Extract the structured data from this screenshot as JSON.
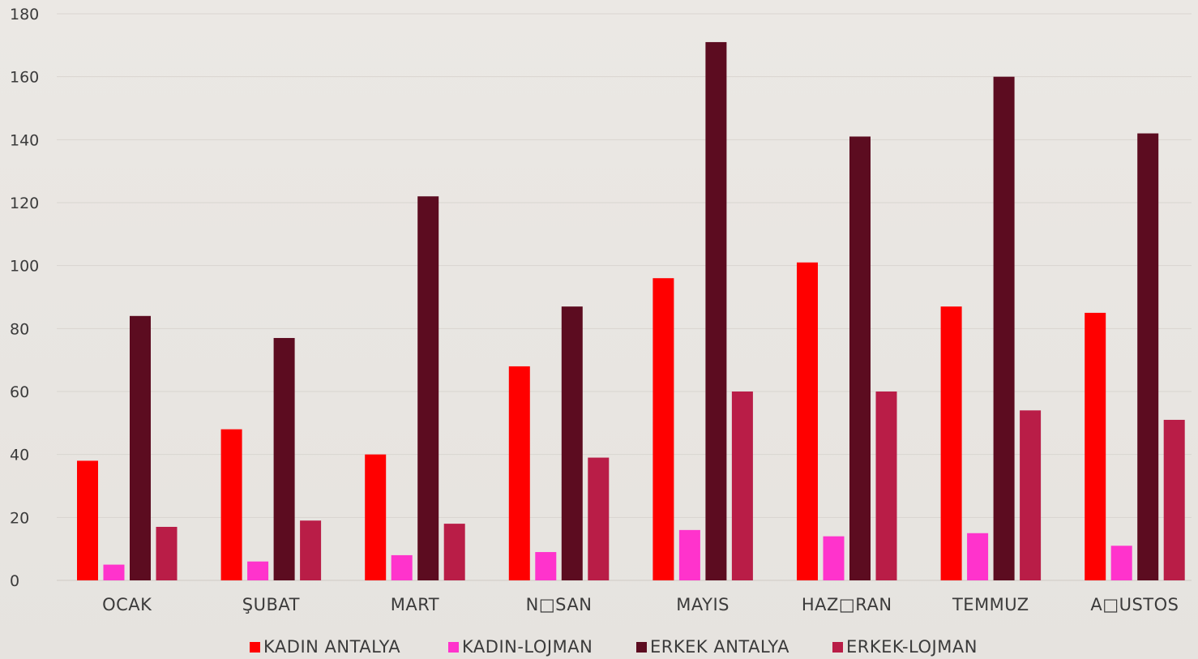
{
  "chart_data": {
    "type": "bar",
    "title": "",
    "xlabel": "",
    "ylabel": "",
    "ylim": [
      0,
      180
    ],
    "yticks": [
      0,
      20,
      40,
      60,
      80,
      100,
      120,
      140,
      160,
      180
    ],
    "ytick_labels": [
      "0",
      "20",
      "40",
      "60",
      "80",
      "100",
      "120",
      "140",
      "160",
      "180"
    ],
    "grid": true,
    "legend_position": "bottom",
    "categories": [
      "OCAK",
      "ŞUBAT",
      "MART",
      "N□SAN",
      "MAYIS",
      "HAZ□RAN",
      "TEMMUZ",
      "A□USTOS"
    ],
    "series": [
      {
        "name": "KADIN ANTALYA",
        "color": "#ff0000",
        "values": [
          38,
          48,
          40,
          68,
          96,
          101,
          87,
          85
        ]
      },
      {
        "name": "KADIN-LOJMAN",
        "color": "#ff33cc",
        "values": [
          5,
          6,
          8,
          9,
          16,
          14,
          15,
          11
        ]
      },
      {
        "name": "ERKEK ANTALYA",
        "color": "#5c0c20",
        "values": [
          84,
          77,
          122,
          87,
          171,
          141,
          160,
          142
        ]
      },
      {
        "name": "ERKEK-LOJMAN",
        "color": "#b91d47",
        "values": [
          17,
          19,
          18,
          39,
          60,
          60,
          54,
          51
        ]
      }
    ]
  }
}
